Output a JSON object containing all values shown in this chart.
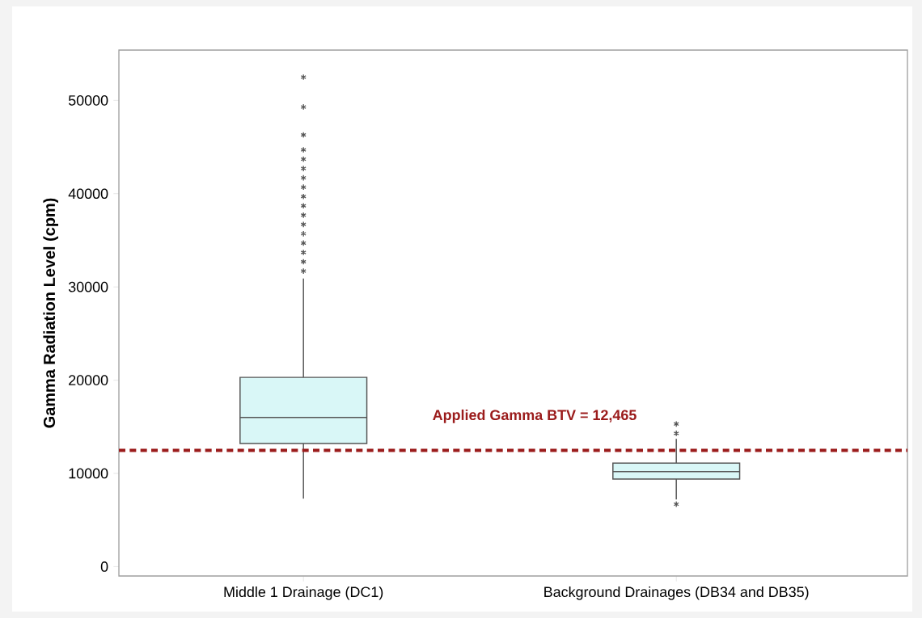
{
  "chart_data": {
    "type": "box",
    "ylabel": "Gamma Radiation Level (cpm)",
    "categories": [
      "Middle 1 Drainage (DC1)",
      "Background Drainages (DB34 and DB35)"
    ],
    "boxes": [
      {
        "low": 7300,
        "q1": 13200,
        "median": 16000,
        "q3": 20300,
        "high": 30900,
        "outliers": [
          31700,
          32700,
          33700,
          34700,
          35700,
          36700,
          37700,
          38700,
          39700,
          40700,
          41700,
          42700,
          43700,
          44700,
          46300,
          49300,
          52500
        ]
      },
      {
        "low": 7200,
        "q1": 9400,
        "median": 10200,
        "q3": 11100,
        "high": 13700,
        "outliers": [
          6700,
          14300,
          15300
        ]
      }
    ],
    "color": "#d9f7f7",
    "marker": "star",
    "ylim": [
      -1000,
      55400
    ],
    "yticks": [
      0,
      10000,
      20000,
      30000,
      40000,
      50000
    ],
    "ref_lines": [
      {
        "axis": "y",
        "value": 12465,
        "label": "Applied Gamma BTV = 12,465",
        "color": "#9b1c1c",
        "line_style": "dashed"
      }
    ]
  }
}
